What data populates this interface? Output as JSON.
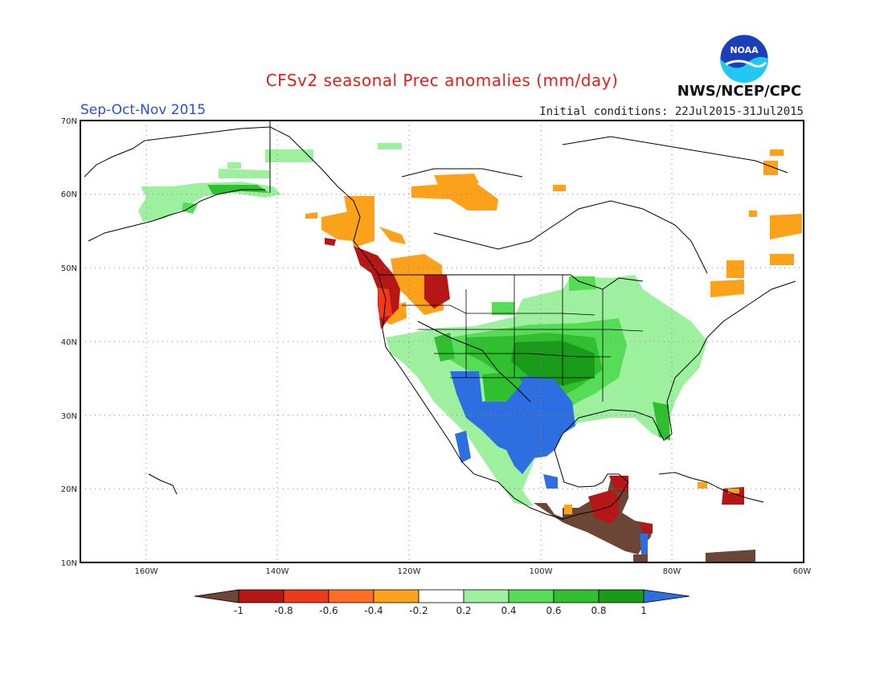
{
  "header": {
    "title": "CFSv2 seasonal Prec anomalies (mm/day)",
    "season": "Sep-Oct-Nov 2015",
    "init_conditions": "Initial conditions: 22Jul2015-31Jul2015",
    "agency": "NWS/NCEP/CPC",
    "logo_text": "NOAA"
  },
  "map": {
    "lat_labels": [
      "70N",
      "60N",
      "50N",
      "40N",
      "30N",
      "20N",
      "10N"
    ],
    "lon_labels": [
      "160W",
      "140W",
      "120W",
      "100W",
      "80W",
      "60W"
    ]
  },
  "legend": {
    "labels": [
      "-1",
      "-0.8",
      "-0.6",
      "-0.4",
      "-0.2",
      "0.2",
      "0.4",
      "0.6",
      "0.8",
      "1"
    ],
    "colors": [
      "#6b4535",
      "#b51717",
      "#ee3a18",
      "#fc6d25",
      "#fba21a",
      "#ffffff",
      "#9df09d",
      "#57dc57",
      "#2fbf2f",
      "#199a19",
      "#2d6fe0"
    ]
  },
  "colors": {
    "very_dry": "#6b4535",
    "dry_red": "#b51717",
    "dry_orange": "#fba21a",
    "wet_light": "#9df09d",
    "wet_mid": "#57dc57",
    "wet_dark": "#2fbf2f",
    "wet_darkest": "#199a19",
    "very_wet": "#2d6fe0"
  }
}
